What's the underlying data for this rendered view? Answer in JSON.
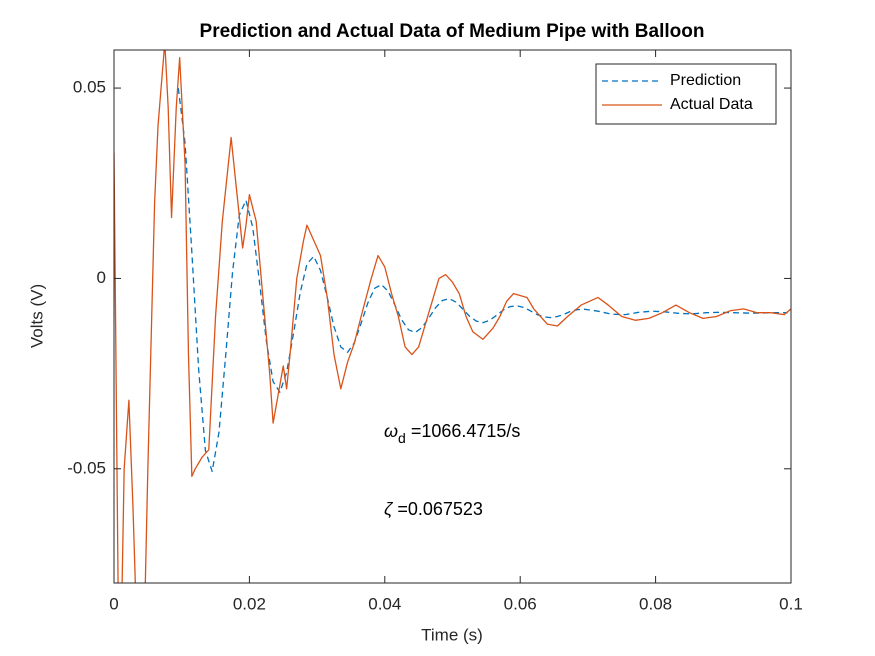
{
  "chart_data": {
    "type": "line",
    "title": "Prediction and Actual Data of Medium Pipe with Balloon",
    "x_label": "Time (s)",
    "y_label": "Volts (V)",
    "xlim": [
      0,
      0.1
    ],
    "ylim": [
      -0.08,
      0.06
    ],
    "xticks": [
      0,
      0.02,
      0.04,
      0.06,
      0.08,
      0.1
    ],
    "yticks": [
      -0.05,
      0,
      0.05
    ],
    "grid": false,
    "legend_position": "northeast",
    "annotations": [
      {
        "symbol": "ω",
        "subscript": "d",
        "text": " =1066.4715/s"
      },
      {
        "symbol": "ζ",
        "text": " =0.067523"
      }
    ],
    "series": [
      {
        "name": "Prediction",
        "color": "#0072BD",
        "dash": true,
        "x": [
          0.0095,
          0.0105,
          0.0115,
          0.0125,
          0.0135,
          0.0145,
          0.0155,
          0.0165,
          0.0175,
          0.0185,
          0.0195,
          0.0205,
          0.0215,
          0.0225,
          0.0235,
          0.0245,
          0.0255,
          0.0265,
          0.0275,
          0.0285,
          0.0295,
          0.0305,
          0.0315,
          0.0325,
          0.0335,
          0.0345,
          0.0355,
          0.0365,
          0.0375,
          0.0385,
          0.0395,
          0.0405,
          0.0415,
          0.0425,
          0.0435,
          0.0445,
          0.0455,
          0.0465,
          0.0475,
          0.0485,
          0.0495,
          0.0505,
          0.0515,
          0.0525,
          0.0535,
          0.0545,
          0.0555,
          0.0565,
          0.0575,
          0.0585,
          0.0595,
          0.0605,
          0.0615,
          0.0625,
          0.0635,
          0.0645,
          0.0655,
          0.0665,
          0.0675,
          0.0685,
          0.0695,
          0.0715,
          0.0735,
          0.0755,
          0.0775,
          0.0795,
          0.0815,
          0.0835,
          0.0855,
          0.0875,
          0.0895,
          0.0915,
          0.0935,
          0.0955,
          0.0975,
          0.0995
        ],
        "values": [
          0.05,
          0.0355,
          0.0069,
          -0.0238,
          -0.0452,
          -0.0507,
          -0.0405,
          -0.0202,
          0.0015,
          0.0166,
          0.0205,
          0.0133,
          -0.0011,
          -0.0164,
          -0.0271,
          -0.0299,
          -0.0247,
          -0.0146,
          -0.0038,
          0.0038,
          0.0058,
          0.0021,
          -0.005,
          -0.0127,
          -0.018,
          -0.0194,
          -0.0169,
          -0.0118,
          -0.0064,
          -0.0026,
          -0.0016,
          -0.0034,
          -0.007,
          -0.0109,
          -0.0135,
          -0.0142,
          -0.0129,
          -0.0104,
          -0.0077,
          -0.0058,
          -0.0053,
          -0.0062,
          -0.008,
          -0.0099,
          -0.0112,
          -0.0116,
          -0.011,
          -0.0097,
          -0.0083,
          -0.0074,
          -0.0072,
          -0.0076,
          -0.0085,
          -0.0095,
          -0.0101,
          -0.0103,
          -0.01,
          -0.0094,
          -0.0086,
          -0.0082,
          -0.0081,
          -0.0086,
          -0.0094,
          -0.0095,
          -0.0089,
          -0.0086,
          -0.0088,
          -0.0092,
          -0.0093,
          -0.009,
          -0.0089,
          -0.009,
          -0.0091,
          -0.0091,
          -0.009,
          -0.009
        ]
      },
      {
        "name": "Actual Data",
        "color": "#D95319",
        "dash": false,
        "x": [
          0,
          0.0006,
          0.001,
          0.0015,
          0.0022,
          0.0028,
          0.0035,
          0.0045,
          0.005,
          0.006,
          0.0065,
          0.0075,
          0.008,
          0.0085,
          0.0092,
          0.0097,
          0.0105,
          0.011,
          0.0115,
          0.012,
          0.013,
          0.014,
          0.015,
          0.016,
          0.0173,
          0.018,
          0.019,
          0.0195,
          0.02,
          0.021,
          0.022,
          0.023,
          0.0235,
          0.0245,
          0.025,
          0.0255,
          0.026,
          0.027,
          0.028,
          0.0285,
          0.0295,
          0.0305,
          0.0315,
          0.0325,
          0.0335,
          0.0345,
          0.0355,
          0.0365,
          0.038,
          0.039,
          0.04,
          0.041,
          0.042,
          0.043,
          0.044,
          0.045,
          0.046,
          0.047,
          0.048,
          0.049,
          0.05,
          0.051,
          0.052,
          0.053,
          0.0545,
          0.056,
          0.057,
          0.058,
          0.059,
          0.061,
          0.062,
          0.064,
          0.0655,
          0.067,
          0.069,
          0.0715,
          0.073,
          0.075,
          0.077,
          0.079,
          0.081,
          0.083,
          0.085,
          0.087,
          0.089,
          0.091,
          0.093,
          0.095,
          0.097,
          0.099,
          0.1
        ],
        "values": [
          0.033,
          -0.08,
          -0.1,
          -0.05,
          -0.032,
          -0.06,
          -0.1,
          -0.09,
          -0.05,
          0.02,
          0.04,
          0.062,
          0.045,
          0.016,
          0.045,
          0.058,
          0.03,
          -0.02,
          -0.052,
          -0.05,
          -0.047,
          -0.045,
          -0.01,
          0.015,
          0.037,
          0.025,
          0.008,
          0.014,
          0.022,
          0.015,
          -0.005,
          -0.025,
          -0.038,
          -0.028,
          -0.023,
          -0.029,
          -0.02,
          0.0,
          0.01,
          0.014,
          0.01,
          0.006,
          -0.005,
          -0.02,
          -0.029,
          -0.022,
          -0.017,
          -0.01,
          0.0,
          0.006,
          0.003,
          -0.004,
          -0.01,
          -0.018,
          -0.02,
          -0.018,
          -0.012,
          -0.006,
          0.0,
          0.001,
          -0.001,
          -0.004,
          -0.01,
          -0.014,
          -0.016,
          -0.013,
          -0.01,
          -0.006,
          -0.004,
          -0.005,
          -0.008,
          -0.012,
          -0.0125,
          -0.01,
          -0.007,
          -0.005,
          -0.007,
          -0.01,
          -0.011,
          -0.0105,
          -0.009,
          -0.007,
          -0.009,
          -0.0105,
          -0.01,
          -0.0085,
          -0.008,
          -0.009,
          -0.009,
          -0.0095,
          -0.008
        ]
      }
    ]
  }
}
